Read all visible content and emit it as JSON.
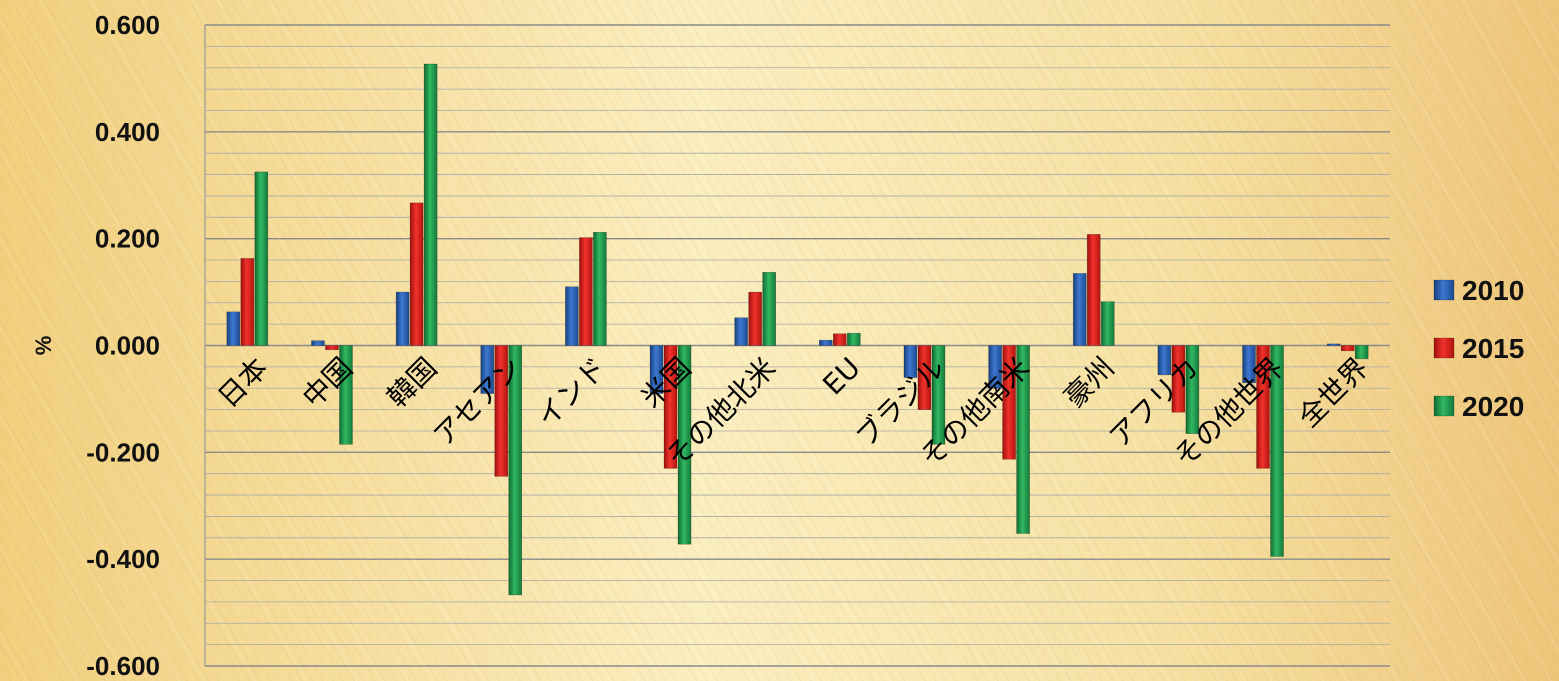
{
  "chart_data": {
    "type": "bar",
    "title": "",
    "xlabel": "",
    "ylabel": "%",
    "ylim": [
      -0.6,
      0.6
    ],
    "yticks": [
      "0.600",
      "0.400",
      "0.200",
      "0.000",
      "-0.200",
      "-0.400",
      "-0.600"
    ],
    "ytick_values": [
      0.6,
      0.4,
      0.2,
      0.0,
      -0.2,
      -0.4,
      -0.6
    ],
    "grid": true,
    "legend_position": "right",
    "categories": [
      "日本",
      "中国",
      "韓国",
      "アセアン",
      "インド",
      "米国",
      "その他北米",
      "EU",
      "ブラジル",
      "その他南米",
      "豪州",
      "アフリカ",
      "その他世界",
      "全世界"
    ],
    "series": [
      {
        "name": "2010",
        "color": "#2b5fb4",
        "values": [
          0.063,
          0.009,
          0.1,
          -0.09,
          0.11,
          -0.09,
          0.052,
          0.01,
          -0.06,
          -0.08,
          0.135,
          -0.055,
          -0.07,
          0.003
        ]
      },
      {
        "name": "2015",
        "color": "#e0201d",
        "values": [
          0.163,
          -0.008,
          0.267,
          -0.245,
          0.202,
          -0.23,
          0.1,
          0.022,
          -0.12,
          -0.213,
          0.208,
          -0.125,
          -0.23,
          -0.01
        ]
      },
      {
        "name": "2020",
        "color": "#1f9a4c",
        "values": [
          0.325,
          -0.185,
          0.527,
          -0.467,
          0.212,
          -0.372,
          0.137,
          0.023,
          -0.185,
          -0.352,
          0.082,
          -0.165,
          -0.395,
          -0.025
        ]
      }
    ]
  }
}
